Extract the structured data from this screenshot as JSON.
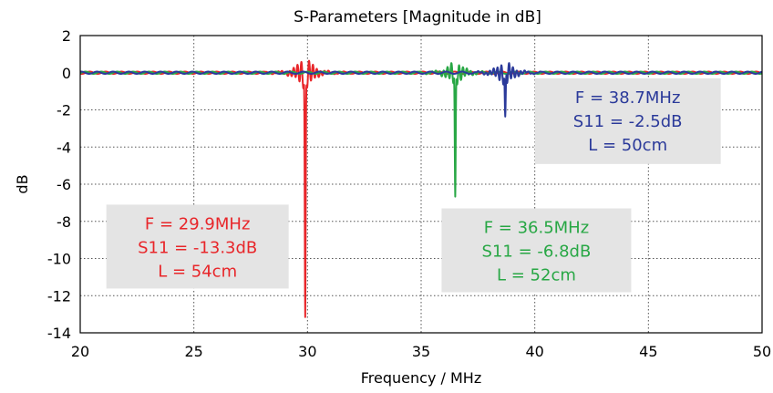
{
  "chart_data": {
    "type": "line",
    "title": "S-Parameters [Magnitude in dB]",
    "xlabel": "Frequency / MHz",
    "ylabel": "dB",
    "xlim": [
      20,
      50
    ],
    "ylim": [
      -14,
      2
    ],
    "x_ticks": [
      "20",
      "25",
      "30",
      "35",
      "40",
      "45",
      "50"
    ],
    "y_ticks": [
      "2",
      "0",
      "-2",
      "-4",
      "-6",
      "-8",
      "-10",
      "-12",
      "-14"
    ],
    "grid": true,
    "series": [
      {
        "color": "#e8262a",
        "resonance_mhz": 29.9,
        "min_db": -13.3
      },
      {
        "color": "#28a745",
        "resonance_mhz": 36.5,
        "min_db": -6.8
      },
      {
        "color": "#2b3a9a",
        "resonance_mhz": 38.7,
        "min_db": -2.5
      }
    ],
    "annotations": [
      {
        "lines": [
          "F = 29.9MHz",
          "S11 = -13.3dB",
          "L = 54cm"
        ],
        "color": "#e8262a"
      },
      {
        "lines": [
          "F = 36.5MHz",
          "S11 = -6.8dB",
          "L = 52cm"
        ],
        "color": "#28a745"
      },
      {
        "lines": [
          "F = 38.7MHz",
          "S11 = -2.5dB",
          "L = 50cm"
        ],
        "color": "#2b3a9a"
      }
    ]
  }
}
